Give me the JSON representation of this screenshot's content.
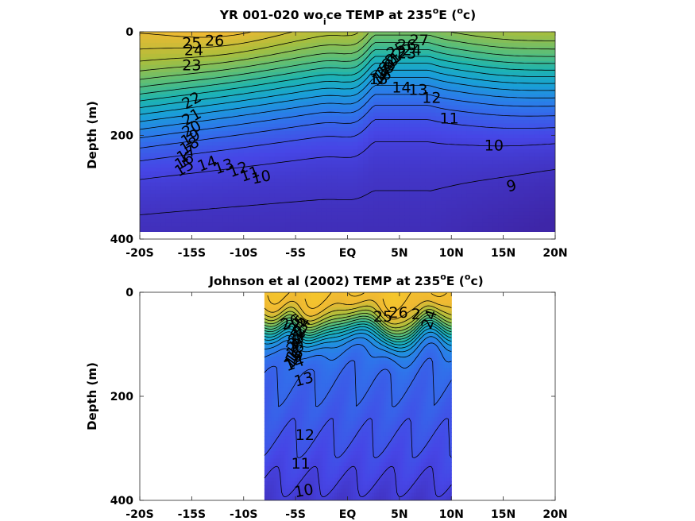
{
  "chart_data": [
    {
      "type": "heatmap",
      "title": {
        "prefix": "YR 001-020 wo",
        "sub": "i",
        "mid": "ce TEMP at 235",
        "sup1": "o",
        "unit_pre": "E (",
        "sup2": "o",
        "unit_post": "c)"
      },
      "xlabel": "",
      "ylabel": "Depth (m)",
      "x_ticks": [
        "-20S",
        "-15S",
        "-10S",
        "-5S",
        "EQ",
        "5N",
        "10N",
        "15N",
        "20N"
      ],
      "x_tick_values": [
        -20,
        -15,
        -10,
        -5,
        0,
        5,
        10,
        15,
        20
      ],
      "y_ticks": [
        "0",
        "200",
        "400"
      ],
      "y_tick_values": [
        0,
        200,
        400
      ],
      "xlim": [
        -20,
        20
      ],
      "ylim": [
        400,
        0
      ],
      "data_extent": {
        "x": [
          -20,
          20
        ],
        "depth": [
          0,
          390
        ]
      },
      "colormap": "parula",
      "color_range": [
        8,
        28
      ],
      "contour_levels": [
        9,
        10,
        11,
        12,
        13,
        14,
        15,
        16,
        17,
        18,
        19,
        20,
        21,
        22,
        23,
        24,
        25,
        26,
        27
      ],
      "labels": [
        {
          "text": "25",
          "x": -15,
          "depth": 22,
          "angle": 0
        },
        {
          "text": "26",
          "x": -12.8,
          "depth": 18,
          "angle": 0
        },
        {
          "text": "24",
          "x": -14.8,
          "depth": 36,
          "angle": 0
        },
        {
          "text": "23",
          "x": -15,
          "depth": 65,
          "angle": 0
        },
        {
          "text": "22",
          "x": -15,
          "depth": 133,
          "angle": -30
        },
        {
          "text": "21",
          "x": -15,
          "depth": 165,
          "angle": -30
        },
        {
          "text": "20",
          "x": -15,
          "depth": 188,
          "angle": -30
        },
        {
          "text": "19",
          "x": -15.1,
          "depth": 205,
          "angle": -30
        },
        {
          "text": "18",
          "x": -15.2,
          "depth": 220,
          "angle": -30
        },
        {
          "text": "17",
          "x": -15.5,
          "depth": 236,
          "angle": -30
        },
        {
          "text": "16",
          "x": -15.7,
          "depth": 250,
          "angle": -30
        },
        {
          "text": "15",
          "x": -15.7,
          "depth": 263,
          "angle": -30
        },
        {
          "text": "14",
          "x": -13.5,
          "depth": 255,
          "angle": -20
        },
        {
          "text": "13",
          "x": -11.9,
          "depth": 260,
          "angle": -20
        },
        {
          "text": "12",
          "x": -10.5,
          "depth": 266,
          "angle": -20
        },
        {
          "text": "11",
          "x": -9.4,
          "depth": 275,
          "angle": -20
        },
        {
          "text": "10",
          "x": -8.3,
          "depth": 281,
          "angle": -12
        },
        {
          "text": "27",
          "x": 6.9,
          "depth": 17,
          "angle": 0
        },
        {
          "text": "26",
          "x": 5.7,
          "depth": 26,
          "angle": 0
        },
        {
          "text": "25",
          "x": 4.7,
          "depth": 36,
          "angle": -30
        },
        {
          "text": "24",
          "x": 6.2,
          "depth": 36,
          "angle": 0
        },
        {
          "text": "23",
          "x": 5.7,
          "depth": 42,
          "angle": 0
        },
        {
          "text": "22",
          "x": 4.6,
          "depth": 48,
          "angle": -40
        },
        {
          "text": "21",
          "x": 4.3,
          "depth": 56,
          "angle": -40
        },
        {
          "text": "20",
          "x": 4.0,
          "depth": 63,
          "angle": -40
        },
        {
          "text": "19",
          "x": 3.8,
          "depth": 70,
          "angle": -40
        },
        {
          "text": "18",
          "x": 3.6,
          "depth": 76,
          "angle": -40
        },
        {
          "text": "17",
          "x": 3.4,
          "depth": 82,
          "angle": -40
        },
        {
          "text": "16",
          "x": 3.3,
          "depth": 88,
          "angle": -30
        },
        {
          "text": "15",
          "x": 3.0,
          "depth": 92,
          "angle": 0
        },
        {
          "text": "14",
          "x": 5.2,
          "depth": 108,
          "angle": 0
        },
        {
          "text": "13",
          "x": 6.8,
          "depth": 113,
          "angle": 0
        },
        {
          "text": "12",
          "x": 8.1,
          "depth": 128,
          "angle": 0
        },
        {
          "text": "11",
          "x": 9.8,
          "depth": 168,
          "angle": 0
        },
        {
          "text": "10",
          "x": 14.1,
          "depth": 220,
          "angle": 0
        },
        {
          "text": "9",
          "x": 15.8,
          "depth": 298,
          "angle": -15
        }
      ]
    },
    {
      "type": "heatmap",
      "title": {
        "prefix": "Johnson et al (2002) TEMP at 235",
        "sup1": "o",
        "unit_pre": "E (",
        "sup2": "o",
        "unit_post": "c)"
      },
      "xlabel": "",
      "ylabel": "Depth (m)",
      "x_ticks": [
        "-20S",
        "-15S",
        "-10S",
        "-5S",
        "EQ",
        "5N",
        "10N",
        "15N",
        "20N"
      ],
      "x_tick_values": [
        -20,
        -15,
        -10,
        -5,
        0,
        5,
        10,
        15,
        20
      ],
      "y_ticks": [
        "0",
        "200",
        "400"
      ],
      "y_tick_values": [
        0,
        200,
        400
      ],
      "xlim": [
        -20,
        20
      ],
      "ylim": [
        400,
        0
      ],
      "data_extent": {
        "x": [
          -8,
          10
        ],
        "depth": [
          0,
          400
        ]
      },
      "colormap": "parula",
      "color_range": [
        8,
        28
      ],
      "contour_levels": [
        10,
        11,
        12,
        13,
        14,
        15,
        16,
        17,
        18,
        19,
        20,
        21,
        22,
        23,
        24,
        25,
        26,
        27
      ],
      "labels": [
        {
          "text": "26",
          "x": -5.5,
          "depth": 58,
          "angle": -20
        },
        {
          "text": "25",
          "x": -4.8,
          "depth": 62,
          "angle": -50
        },
        {
          "text": "24",
          "x": -4.4,
          "depth": 66,
          "angle": -55
        },
        {
          "text": "23",
          "x": -4.6,
          "depth": 74,
          "angle": -55
        },
        {
          "text": "22",
          "x": -4.8,
          "depth": 82,
          "angle": -55
        },
        {
          "text": "21",
          "x": -4.9,
          "depth": 90,
          "angle": -55
        },
        {
          "text": "20",
          "x": -5.0,
          "depth": 98,
          "angle": -55
        },
        {
          "text": "19",
          "x": -5.0,
          "depth": 106,
          "angle": -55
        },
        {
          "text": "18",
          "x": -5.0,
          "depth": 114,
          "angle": -55
        },
        {
          "text": "17",
          "x": -5.1,
          "depth": 120,
          "angle": -55
        },
        {
          "text": "16",
          "x": -5.1,
          "depth": 126,
          "angle": -55
        },
        {
          "text": "15",
          "x": -5.2,
          "depth": 130,
          "angle": -45
        },
        {
          "text": "14",
          "x": -5.1,
          "depth": 137,
          "angle": -20
        },
        {
          "text": "13",
          "x": -4.2,
          "depth": 168,
          "angle": -15
        },
        {
          "text": "12",
          "x": -4.1,
          "depth": 275,
          "angle": 0
        },
        {
          "text": "11",
          "x": -4.5,
          "depth": 330,
          "angle": 0
        },
        {
          "text": "10",
          "x": -4.2,
          "depth": 382,
          "angle": -10
        },
        {
          "text": "25",
          "x": 3.4,
          "depth": 47,
          "angle": 0
        },
        {
          "text": "26",
          "x": 4.9,
          "depth": 40,
          "angle": 0
        },
        {
          "text": "2",
          "x": 6.6,
          "depth": 43,
          "angle": 0
        },
        {
          "text": "24",
          "x": 7.9,
          "depth": 52,
          "angle": -70
        }
      ]
    }
  ]
}
